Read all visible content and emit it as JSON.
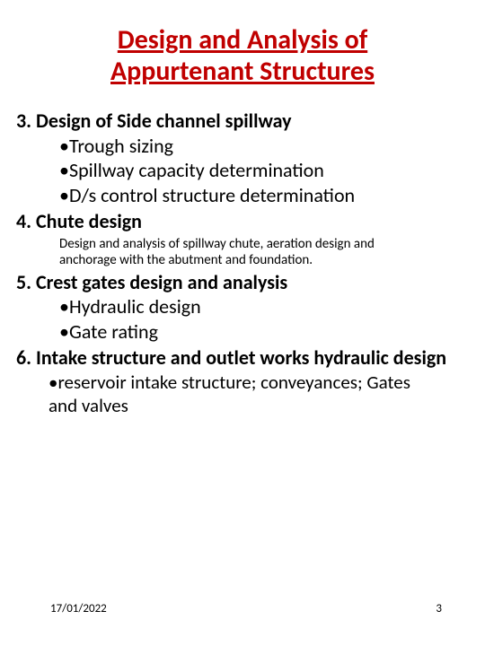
{
  "title_color": "#c00000",
  "title_line1": "Design and Analysis of",
  "title_line2": "Appurtenant Structures",
  "section3": {
    "heading": "3. Design of Side channel spillway",
    "bullets": [
      "Trough sizing",
      "Spillway capacity determination",
      "D/s control structure determination"
    ]
  },
  "section4": {
    "heading": "4. Chute design",
    "note": "Design and analysis of spillway chute, aeration design and anchorage with the abutment and foundation."
  },
  "section5": {
    "heading": "5. Crest gates design and analysis",
    "bullets": [
      "Hydraulic design",
      "Gate rating"
    ]
  },
  "section6": {
    "heading": "6. Intake  structure  and outlet works hydraulic design",
    "sub_bullet": "reservoir intake structure; conveyances; Gates and valves"
  },
  "footer": {
    "date": "17/01/2022",
    "page": "3"
  }
}
